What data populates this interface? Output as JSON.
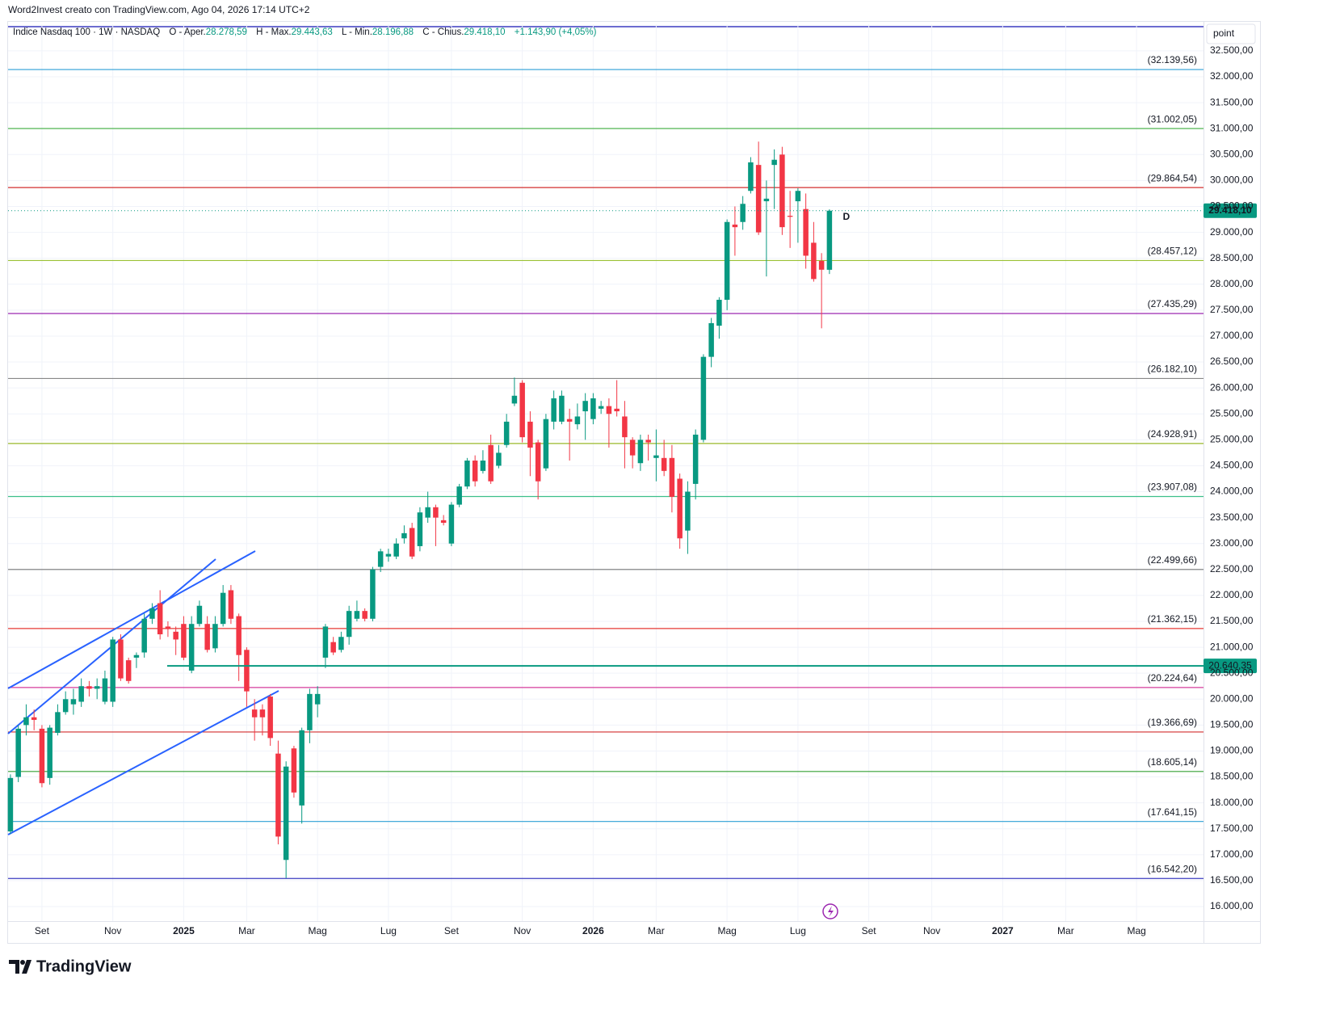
{
  "attribution": "Word2Invest creato con TradingView.com, Ago 04, 2026 17:14 UTC+2",
  "footer": "TradingView",
  "chart_data": {
    "type": "candlestick",
    "header": {
      "title": "Indice Nasdaq 100 · 1W · NASDAQ",
      "items": [
        {
          "label": "O - Aper.",
          "value": "28.278,59"
        },
        {
          "label": "H - Max.",
          "value": "29.443,63"
        },
        {
          "label": "L - Min.",
          "value": "28.196,88"
        },
        {
          "label": "C - Chius.",
          "value": "29.418,10"
        }
      ],
      "change": "+1.143,90 (+4,05%)"
    },
    "axis_unit": "point",
    "up_color": "#089981",
    "down_color": "#f23645",
    "open": [
      17450,
      18500,
      19500,
      19650,
      19430,
      18480,
      19350,
      19750,
      19900,
      19950,
      20250,
      20200,
      19950,
      19950,
      21150,
      20750,
      20800,
      20900,
      21550,
      21850,
      21400,
      21300,
      21450,
      20550,
      21450,
      21450,
      20980,
      21450,
      22100,
      21600,
      20950,
      19800,
      19800,
      20050,
      18950,
      16900,
      19050,
      17950,
      19400,
      19900,
      20800,
      21100,
      20950,
      21200,
      21550,
      21700,
      21550,
      22550,
      22750,
      22750,
      23100,
      23300,
      22950,
      23500,
      23700,
      23450,
      23000,
      23750,
      24100,
      24600,
      24400,
      24900,
      24500,
      24900,
      25700,
      26100,
      25350,
      24950,
      24450,
      25350,
      25350,
      25400,
      25300,
      25550,
      25400,
      25600,
      25650,
      25600,
      25450,
      25000,
      24550,
      25000,
      24650,
      24650,
      24650,
      24250,
      23250,
      24150,
      25000,
      26600,
      27200,
      27700,
      29150,
      29200,
      29800,
      30300,
      29600,
      30300,
      30500,
      29320,
      29600,
      29450,
      28800,
      28450,
      28278.59
    ],
    "high": [
      18550,
      19500,
      19900,
      19800,
      19500,
      19500,
      19900,
      20150,
      20200,
      20400,
      20350,
      20400,
      20550,
      21200,
      21250,
      20800,
      20900,
      21650,
      21850,
      22100,
      21500,
      21400,
      21600,
      21600,
      21900,
      21600,
      21600,
      22200,
      22200,
      21650,
      21000,
      20000,
      19900,
      20100,
      19200,
      18800,
      19100,
      19450,
      20200,
      20250,
      21450,
      21200,
      21300,
      21800,
      21900,
      21750,
      22550,
      22900,
      22900,
      23100,
      23350,
      23400,
      23700,
      24000,
      23750,
      23550,
      23800,
      24150,
      24650,
      24700,
      24800,
      25100,
      24900,
      25500,
      26200,
      26150,
      25550,
      25000,
      25500,
      25950,
      25950,
      25600,
      25700,
      25900,
      25900,
      25750,
      25800,
      26150,
      25750,
      25050,
      25100,
      25100,
      25200,
      25000,
      24900,
      24350,
      24200,
      25200,
      26650,
      27350,
      27750,
      29250,
      29500,
      29700,
      30450,
      30750,
      30000,
      30600,
      30650,
      29800,
      29850,
      29750,
      29200,
      28600,
      29443.63
    ],
    "low": [
      17400,
      18400,
      19300,
      19400,
      18300,
      18350,
      19300,
      19700,
      19700,
      19850,
      20050,
      20000,
      19900,
      19850,
      20350,
      20300,
      20600,
      20800,
      21450,
      21150,
      21200,
      20850,
      20750,
      20500,
      21400,
      20900,
      20900,
      21400,
      21450,
      20350,
      19850,
      19200,
      19300,
      19100,
      17200,
      16550,
      18100,
      17600,
      19150,
      19650,
      20600,
      20850,
      20900,
      21050,
      21500,
      21500,
      21500,
      22450,
      22650,
      22700,
      23000,
      22700,
      22850,
      23400,
      22950,
      23350,
      22950,
      23700,
      24050,
      24100,
      24350,
      24150,
      24450,
      24850,
      25650,
      24950,
      24300,
      23850,
      24400,
      25200,
      25300,
      24600,
      25200,
      25000,
      25300,
      25500,
      24850,
      25450,
      24450,
      24450,
      24400,
      24600,
      24200,
      24300,
      23600,
      22900,
      22800,
      23850,
      24950,
      26400,
      26950,
      27500,
      28550,
      29050,
      29750,
      28950,
      28150,
      29450,
      28950,
      28700,
      28800,
      28300,
      28050,
      27150,
      28196.88
    ],
    "close": [
      18480,
      19430,
      19650,
      19600,
      18380,
      19450,
      19750,
      20000,
      20000,
      20250,
      20200,
      20250,
      20400,
      21150,
      20400,
      20350,
      20850,
      21550,
      21750,
      21250,
      21350,
      21150,
      20800,
      21450,
      21800,
      20950,
      21450,
      22050,
      21550,
      20850,
      20150,
      19650,
      19650,
      19250,
      17350,
      18700,
      18200,
      19400,
      20100,
      20100,
      21400,
      20900,
      21200,
      21700,
      21700,
      21550,
      22500,
      22850,
      22800,
      23000,
      23200,
      22750,
      23600,
      23700,
      23500,
      23400,
      23750,
      24100,
      24600,
      24200,
      24600,
      24200,
      24750,
      25350,
      25850,
      25050,
      24850,
      24200,
      25400,
      25800,
      25850,
      25350,
      25450,
      25750,
      25800,
      25650,
      25500,
      25550,
      25050,
      24700,
      25000,
      24950,
      24700,
      24400,
      23900,
      23100,
      24000,
      25100,
      26600,
      27250,
      27700,
      29200,
      29100,
      29550,
      30350,
      29000,
      29650,
      30400,
      29100,
      29300,
      29800,
      28550,
      28100,
      28280,
      29418.1
    ],
    "xlim": [
      -0.3,
      151.5
    ],
    "xticks": [
      {
        "value": 4,
        "label": "Set"
      },
      {
        "value": 13,
        "label": "Nov"
      },
      {
        "value": 22,
        "label": "2025"
      },
      {
        "value": 30,
        "label": "Mar"
      },
      {
        "value": 39,
        "label": "Mag"
      },
      {
        "value": 48,
        "label": "Lug"
      },
      {
        "value": 56,
        "label": "Set"
      },
      {
        "value": 65,
        "label": "Nov"
      },
      {
        "value": 74,
        "label": "2026"
      },
      {
        "value": 82,
        "label": "Mar"
      },
      {
        "value": 91,
        "label": "Mag"
      },
      {
        "value": 100,
        "label": "Lug"
      },
      {
        "value": 109,
        "label": "Set"
      },
      {
        "value": 117,
        "label": "Nov"
      },
      {
        "value": 126,
        "label": "2027"
      },
      {
        "value": 134,
        "label": "Mar"
      },
      {
        "value": 143,
        "label": "Mag"
      }
    ],
    "ylim": [
      15720,
      33013
    ],
    "yticks": [
      {
        "value": 16000,
        "label": "16.000,00"
      },
      {
        "value": 16500,
        "label": "16.500,00"
      },
      {
        "value": 17000,
        "label": "17.000,00"
      },
      {
        "value": 17500,
        "label": "17.500,00"
      },
      {
        "value": 18000,
        "label": "18.000,00"
      },
      {
        "value": 18500,
        "label": "18.500,00"
      },
      {
        "value": 19000,
        "label": "19.000,00"
      },
      {
        "value": 19500,
        "label": "19.500,00"
      },
      {
        "value": 20000,
        "label": "20.000,00"
      },
      {
        "value": 20500,
        "label": "20.500,00"
      },
      {
        "value": 21000,
        "label": "21.000,00"
      },
      {
        "value": 21500,
        "label": "21.500,00"
      },
      {
        "value": 22000,
        "label": "22.000,00"
      },
      {
        "value": 22500,
        "label": "22.500,00"
      },
      {
        "value": 23000,
        "label": "23.000,00"
      },
      {
        "value": 23500,
        "label": "23.500,00"
      },
      {
        "value": 24000,
        "label": "24.000,00"
      },
      {
        "value": 24500,
        "label": "24.500,00"
      },
      {
        "value": 25000,
        "label": "25.000,00"
      },
      {
        "value": 25500,
        "label": "25.500,00"
      },
      {
        "value": 26000,
        "label": "26.000,00"
      },
      {
        "value": 26500,
        "label": "26.500,00"
      },
      {
        "value": 27000,
        "label": "27.000,00"
      },
      {
        "value": 27500,
        "label": "27.500,00"
      },
      {
        "value": 28000,
        "label": "28.000,00"
      },
      {
        "value": 28500,
        "label": "28.500,00"
      },
      {
        "value": 29000,
        "label": "29.000,00"
      },
      {
        "value": 29500,
        "label": "29.500,00"
      },
      {
        "value": 30000,
        "label": "30.000,00"
      },
      {
        "value": 30500,
        "label": "30.500,00"
      },
      {
        "value": 31000,
        "label": "31.000,00"
      },
      {
        "value": 31500,
        "label": "31.500,00"
      },
      {
        "value": 32000,
        "label": "32.000,00"
      },
      {
        "value": 32500,
        "label": "32.500,00"
      }
    ],
    "grid": true,
    "levels": [
      {
        "value": 32139.56,
        "label": "(32.139,56)",
        "color": "#2c9fd6"
      },
      {
        "value": 31002.05,
        "label": "(31.002,05)",
        "color": "#3fae3f"
      },
      {
        "value": 29864.54,
        "label": "(29.864,54)",
        "color": "#d32f2f"
      },
      {
        "value": 28457.12,
        "label": "(28.457,12)",
        "color": "#9bc134"
      },
      {
        "value": 27435.29,
        "label": "(27.435,29)",
        "color": "#9c27b0"
      },
      {
        "value": 26182.1,
        "label": "(26.182,10)",
        "color": "#888888"
      },
      {
        "value": 24928.91,
        "label": "(24.928,91)",
        "color": "#9ab92a"
      },
      {
        "value": 23907.08,
        "label": "(23.907,08)",
        "color": "#3cbf8a"
      },
      {
        "value": 22499.66,
        "label": "(22.499,66)",
        "color": "#777777"
      },
      {
        "value": 21362.15,
        "label": "(21.362,15)",
        "color": "#e53935"
      },
      {
        "value": 20224.64,
        "label": "(20.224,64)",
        "color": "#d63c9c"
      },
      {
        "value": 19366.69,
        "label": "(19.366,69)",
        "color": "#d32f2f"
      },
      {
        "value": 18605.14,
        "label": "(18.605,14)",
        "color": "#35a035"
      },
      {
        "value": 17641.15,
        "label": "(17.641,15)",
        "color": "#2c9fd6"
      },
      {
        "value": 16542.2,
        "label": "(16.542,20)",
        "color": "#3c3cc0"
      }
    ],
    "support": {
      "value": 20640.35,
      "label": "20.640,35",
      "color": "#089981"
    },
    "last_price": {
      "value": 29418.1,
      "label": "29.418,10",
      "color": "#089981"
    },
    "marker": "D"
  }
}
